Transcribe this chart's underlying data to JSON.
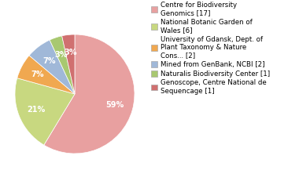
{
  "labels": [
    "Centre for Biodiversity\nGenomics [17]",
    "National Botanic Garden of\nWales [6]",
    "University of Gdansk, Dept. of\nPlant Taxonomy & Nature\nCons... [2]",
    "Mined from GenBank, NCBI [2]",
    "Naturalis Biodiversity Center [1]",
    "Genoscope, Centre National de\nSequencage [1]"
  ],
  "values": [
    17,
    6,
    2,
    2,
    1,
    1
  ],
  "colors": [
    "#e8a0a0",
    "#c8d880",
    "#f0a850",
    "#a0b8d8",
    "#a8c870",
    "#d07070"
  ],
  "startangle": 90,
  "figsize": [
    3.8,
    2.4
  ],
  "dpi": 100,
  "legend_fontsize": 6.2,
  "autopct_fontsize": 7.0
}
